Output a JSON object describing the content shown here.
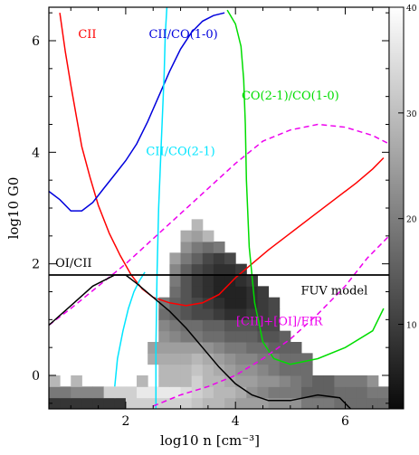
{
  "chart_data": {
    "type": "heatmap",
    "xlabel": "log10 n [cm⁻³]",
    "ylabel": "log10 G0",
    "xlim": [
      0.6,
      6.8
    ],
    "ylim": [
      -0.6,
      6.6
    ],
    "x_ticks": [
      2,
      4,
      6
    ],
    "x_tick_labels": [
      "2",
      "4",
      "6"
    ],
    "y_ticks": [
      0,
      2,
      4,
      6
    ],
    "y_tick_labels": [
      "0",
      "2",
      "4",
      "6"
    ],
    "colorbar": {
      "range": [
        2,
        40
      ],
      "ticks": [
        10,
        20,
        30,
        40
      ],
      "tick_labels": [
        "10",
        "20",
        "30",
        "40"
      ],
      "colormap": "grayscale-reversed"
    },
    "heatmap": {
      "x0": 0.6,
      "dx": 0.2,
      "y0": -0.6,
      "dy": 0.2,
      "rows": [
        [
          9,
          9,
          9,
          9,
          9,
          9,
          9,
          34,
          34,
          34,
          34,
          34,
          34,
          32,
          30,
          30,
          28,
          26,
          26,
          26,
          24,
          24,
          24,
          20,
          20,
          20,
          18,
          18,
          18,
          18,
          18,
          18,
          16,
          16,
          16,
          16,
          16
        ],
        [
          20,
          20,
          22,
          22,
          22,
          34,
          34,
          34,
          38,
          38,
          38,
          38,
          36,
          34,
          32,
          30,
          30,
          28,
          24,
          22,
          20,
          20,
          20,
          16,
          16,
          16,
          18,
          18,
          18,
          20,
          20,
          20,
          20,
          20,
          20,
          0,
          0
        ],
        [
          30,
          0,
          30,
          0,
          0,
          0,
          0,
          0,
          30,
          0,
          30,
          30,
          30,
          34,
          30,
          30,
          28,
          26,
          26,
          24,
          24,
          22,
          20,
          18,
          16,
          16,
          20,
          20,
          20,
          24,
          0,
          24,
          0,
          0,
          0,
          0,
          0
        ],
        [
          0,
          0,
          0,
          0,
          0,
          0,
          0,
          0,
          0,
          0,
          30,
          30,
          30,
          32,
          30,
          28,
          26,
          24,
          24,
          22,
          20,
          18,
          18,
          18,
          0,
          0,
          0,
          0,
          0,
          0,
          0,
          0,
          0,
          0,
          0,
          0,
          0
        ],
        [
          0,
          0,
          0,
          0,
          0,
          0,
          0,
          0,
          0,
          28,
          28,
          28,
          28,
          30,
          28,
          26,
          24,
          22,
          22,
          20,
          20,
          18,
          18,
          18,
          0,
          0,
          0,
          0,
          0,
          0,
          0,
          0,
          0,
          0,
          0,
          0,
          0
        ],
        [
          0,
          0,
          0,
          0,
          0,
          0,
          0,
          0,
          0,
          26,
          26,
          26,
          26,
          26,
          24,
          22,
          20,
          20,
          18,
          18,
          16,
          16,
          16,
          0,
          0,
          0,
          0,
          0,
          0,
          0,
          0,
          0,
          0,
          0,
          0,
          0,
          0
        ],
        [
          0,
          0,
          0,
          0,
          0,
          0,
          0,
          0,
          0,
          0,
          24,
          22,
          20,
          20,
          18,
          18,
          16,
          16,
          16,
          14,
          14,
          16,
          0,
          0,
          0,
          0,
          0,
          0,
          0,
          0,
          0,
          0,
          0,
          0,
          0,
          0,
          0
        ],
        [
          0,
          0,
          0,
          0,
          0,
          0,
          0,
          0,
          0,
          0,
          22,
          20,
          18,
          18,
          16,
          16,
          14,
          14,
          14,
          12,
          12,
          0,
          0,
          0,
          0,
          0,
          0,
          0,
          0,
          0,
          0,
          0,
          0,
          0,
          0,
          0,
          0
        ],
        [
          0,
          0,
          0,
          0,
          0,
          0,
          0,
          0,
          0,
          0,
          18,
          16,
          14,
          12,
          12,
          10,
          8,
          8,
          10,
          10,
          12,
          0,
          0,
          0,
          0,
          0,
          0,
          0,
          0,
          0,
          0,
          0,
          0,
          0,
          0,
          0,
          0
        ],
        [
          0,
          0,
          0,
          0,
          0,
          0,
          0,
          0,
          0,
          0,
          20,
          16,
          14,
          12,
          10,
          8,
          6,
          6,
          8,
          10,
          12,
          0,
          0,
          0,
          0,
          0,
          0,
          0,
          0,
          0,
          0,
          0,
          0,
          0,
          0,
          0,
          0
        ],
        [
          0,
          0,
          0,
          0,
          0,
          0,
          0,
          0,
          0,
          0,
          0,
          18,
          14,
          10,
          8,
          6,
          6,
          6,
          8,
          10,
          0,
          0,
          0,
          0,
          0,
          0,
          0,
          0,
          0,
          0,
          0,
          0,
          0,
          0,
          0,
          0,
          0
        ],
        [
          0,
          0,
          0,
          0,
          0,
          0,
          0,
          0,
          0,
          0,
          0,
          20,
          14,
          10,
          8,
          6,
          6,
          8,
          10,
          0,
          0,
          0,
          0,
          0,
          0,
          0,
          0,
          0,
          0,
          0,
          0,
          0,
          0,
          0,
          0,
          0,
          0
        ],
        [
          0,
          0,
          0,
          0,
          0,
          0,
          0,
          0,
          0,
          0,
          0,
          22,
          16,
          12,
          10,
          8,
          8,
          10,
          0,
          0,
          0,
          0,
          0,
          0,
          0,
          0,
          0,
          0,
          0,
          0,
          0,
          0,
          0,
          0,
          0,
          0,
          0
        ],
        [
          0,
          0,
          0,
          0,
          0,
          0,
          0,
          0,
          0,
          0,
          0,
          26,
          20,
          16,
          12,
          10,
          12,
          0,
          0,
          0,
          0,
          0,
          0,
          0,
          0,
          0,
          0,
          0,
          0,
          0,
          0,
          0,
          0,
          0,
          0,
          0,
          0
        ],
        [
          0,
          0,
          0,
          0,
          0,
          0,
          0,
          0,
          0,
          0,
          0,
          0,
          24,
          20,
          18,
          20,
          0,
          0,
          0,
          0,
          0,
          0,
          0,
          0,
          0,
          0,
          0,
          0,
          0,
          0,
          0,
          0,
          0,
          0,
          0,
          0,
          0
        ],
        [
          0,
          0,
          0,
          0,
          0,
          0,
          0,
          0,
          0,
          0,
          0,
          0,
          28,
          26,
          30,
          0,
          0,
          0,
          0,
          0,
          0,
          0,
          0,
          0,
          0,
          0,
          0,
          0,
          0,
          0,
          0,
          0,
          0,
          0,
          0,
          0,
          0
        ],
        [
          0,
          0,
          0,
          0,
          0,
          0,
          0,
          0,
          0,
          0,
          0,
          0,
          0,
          30,
          0,
          0,
          0,
          0,
          0,
          0,
          0,
          0,
          0,
          0,
          0,
          0,
          0,
          0,
          0,
          0,
          0,
          0,
          0,
          0,
          0,
          0,
          0
        ]
      ]
    },
    "series": [
      {
        "name": "CII",
        "color": "#ff0000",
        "dash": "solid",
        "x": [
          0.8,
          0.9,
          1.0,
          1.1,
          1.2,
          1.35,
          1.5,
          1.7,
          1.9,
          2.1,
          2.3,
          2.5,
          2.8,
          3.1,
          3.4,
          3.7,
          4.0,
          4.3,
          4.6,
          5.0,
          5.4,
          5.8,
          6.2,
          6.5,
          6.7
        ],
        "y": [
          6.5,
          5.8,
          5.2,
          4.65,
          4.1,
          3.55,
          3.05,
          2.55,
          2.15,
          1.8,
          1.55,
          1.4,
          1.3,
          1.25,
          1.3,
          1.45,
          1.75,
          2.0,
          2.25,
          2.55,
          2.85,
          3.15,
          3.45,
          3.7,
          3.9
        ]
      },
      {
        "name": "CII/CO(1-0)",
        "color": "#0000dd",
        "dash": "solid",
        "x": [
          0.6,
          0.8,
          1.0,
          1.2,
          1.4,
          1.6,
          1.8,
          2.0,
          2.2,
          2.4,
          2.6,
          2.8,
          3.0,
          3.2,
          3.4,
          3.6,
          3.8
        ],
        "y": [
          3.3,
          3.15,
          2.95,
          2.95,
          3.1,
          3.35,
          3.6,
          3.85,
          4.15,
          4.55,
          5.0,
          5.45,
          5.85,
          6.15,
          6.35,
          6.45,
          6.5
        ]
      },
      {
        "name": "CII/CO(2-1)",
        "color": "#00e5ff",
        "dash": "solid",
        "x": [
          2.55,
          2.55,
          2.57,
          2.6,
          2.65,
          2.7,
          2.72,
          2.75
        ],
        "y": [
          -0.6,
          0.5,
          1.8,
          3.0,
          4.2,
          5.4,
          6.1,
          6.6
        ]
      },
      {
        "name": "CII/CO(2-1)",
        "color": "#00e5ff",
        "dash": "solid",
        "x": [
          1.8,
          1.85,
          1.95,
          2.05,
          2.15,
          2.25,
          2.35
        ],
        "y": [
          -0.2,
          0.3,
          0.8,
          1.2,
          1.5,
          1.7,
          1.85
        ]
      },
      {
        "name": "CO(2-1)/CO(1-0)",
        "color": "#00dd00",
        "dash": "solid",
        "x": [
          3.85,
          4.0,
          4.1,
          4.15,
          4.18,
          4.2,
          4.25,
          4.35,
          4.5,
          4.7,
          5.0,
          5.5,
          6.0,
          6.5,
          6.7
        ],
        "y": [
          6.55,
          6.3,
          5.9,
          5.3,
          4.5,
          3.5,
          2.3,
          1.3,
          0.6,
          0.3,
          0.2,
          0.3,
          0.5,
          0.8,
          1.2
        ]
      },
      {
        "name": "[CII]+[OI]/FIR",
        "color": "#ee00ee",
        "dash": "dashed",
        "x": [
          0.6,
          1.0,
          1.5,
          2.0,
          2.5,
          3.0,
          3.5,
          4.0,
          4.5,
          5.0,
          5.5,
          6.0,
          6.5,
          6.8
        ],
        "y": [
          0.9,
          1.2,
          1.6,
          2.0,
          2.45,
          2.9,
          3.35,
          3.8,
          4.2,
          4.4,
          4.5,
          4.45,
          4.3,
          4.15
        ]
      },
      {
        "name": "[CII]+[OI]/FIR",
        "color": "#ee00ee",
        "dash": "dashed",
        "x": [
          2.5,
          3.0,
          3.5,
          4.0,
          4.5,
          5.0,
          5.5,
          6.0,
          6.4,
          6.8
        ],
        "y": [
          -0.55,
          -0.35,
          -0.2,
          0.0,
          0.3,
          0.65,
          1.1,
          1.6,
          2.1,
          2.5
        ]
      },
      {
        "name": "OI/CII",
        "color": "#000000",
        "dash": "solid",
        "x": [
          0.6,
          1.0,
          1.4,
          1.8,
          2.0,
          2.2,
          2.5,
          2.8,
          3.1,
          3.4,
          3.7,
          4.0,
          4.3,
          4.6,
          5.0,
          5.5,
          5.9,
          6.1
        ],
        "y": [
          0.9,
          1.25,
          1.6,
          1.8,
          1.8,
          1.65,
          1.4,
          1.15,
          0.85,
          0.5,
          0.15,
          -0.15,
          -0.35,
          -0.45,
          -0.45,
          -0.35,
          -0.4,
          -0.6
        ]
      },
      {
        "name": "FUV model",
        "color": "#000000",
        "dash": "solid",
        "x": [
          0.6,
          6.8
        ],
        "y": [
          1.8,
          1.8
        ]
      }
    ],
    "annotations": [
      {
        "text": "CII",
        "color": "#ff0000",
        "x": 1.3,
        "y": 6.05
      },
      {
        "text": "CII/CO(1-0)",
        "color": "#0000dd",
        "x": 3.05,
        "y": 6.05
      },
      {
        "text": "CO(2-1)/CO(1-0)",
        "color": "#00dd00",
        "x": 5.0,
        "y": 4.95
      },
      {
        "text": "CII/CO(2-1)",
        "color": "#00e5ff",
        "x": 3.0,
        "y": 3.95
      },
      {
        "text": "OI/CII",
        "color": "#000000",
        "x": 1.05,
        "y": 1.95
      },
      {
        "text": "FUV model",
        "color": "#000000",
        "x": 5.8,
        "y": 1.45
      },
      {
        "text": "[CII]+[OI]/FIR",
        "color": "#ee00ee",
        "x": 4.8,
        "y": 0.9
      }
    ]
  }
}
